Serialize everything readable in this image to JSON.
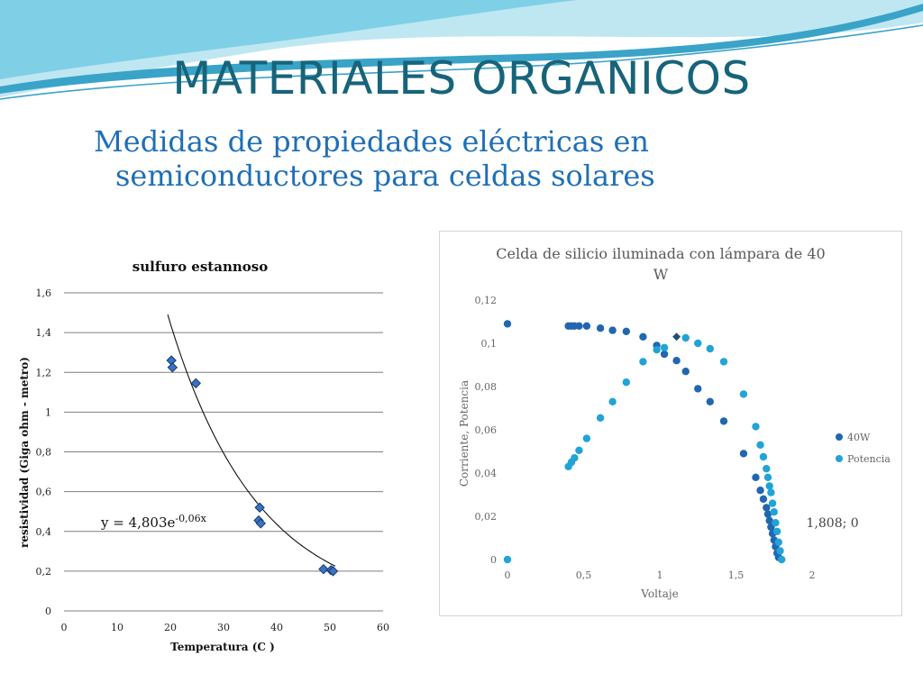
{
  "slide": {
    "title": "MATERIALES ORGANICOS",
    "subtitle_line1": "Medidas de propiedades eléctricas en",
    "subtitle_line2": "semiconductores para celdas solares"
  },
  "colors": {
    "title": "#17647a",
    "subtitle": "#1f6fb5",
    "wave_light": "#bfe7f2",
    "wave_mid": "#7fd0e6",
    "wave_dark": "#3aa3c8",
    "series_dark": "#2166b0",
    "series_light": "#22a3d8"
  },
  "chart_data": [
    {
      "type": "scatter",
      "title": "sulfuro estannoso",
      "xlabel": "Temperatura (C )",
      "ylabel": "resistividad (Giga ohm - metro)",
      "xlim": [
        0,
        60
      ],
      "ylim": [
        0,
        1.6
      ],
      "xticks": [
        0,
        10,
        20,
        30,
        40,
        50,
        60
      ],
      "yticks": [
        0,
        0.2,
        0.4,
        0.6,
        0.8,
        1,
        1.2,
        1.4,
        1.6
      ],
      "xtick_labels": [
        "0",
        "10",
        "20",
        "30",
        "40",
        "50",
        "60"
      ],
      "ytick_labels": [
        "0",
        "0,2",
        "0,4",
        "0,6",
        "0,8",
        "1",
        "1,2",
        "1,4",
        "1,6"
      ],
      "grid": "horizontal",
      "marker": "diamond",
      "series": [
        {
          "name": "sulfuro estannoso",
          "points": [
            [
              20.2,
              1.26
            ],
            [
              20.4,
              1.225
            ],
            [
              24.8,
              1.145
            ],
            [
              36.8,
              0.52
            ],
            [
              36.6,
              0.455
            ],
            [
              37.0,
              0.44
            ],
            [
              48.8,
              0.21
            ],
            [
              50.2,
              0.205
            ],
            [
              50.6,
              0.2
            ]
          ]
        }
      ],
      "trendline": {
        "type": "exponential",
        "a": 4.803,
        "b": -0.06,
        "x_range": [
          19.5,
          51
        ]
      },
      "equation_main": "y = 4,803e",
      "equation_exp": "-0,06x"
    },
    {
      "type": "scatter",
      "title_line1": "Celda de silicio iluminada con lámpara de 40",
      "title_line2": "W",
      "xlabel": "Voltaje",
      "ylabel": "Corriente, Potencia",
      "xlim": [
        0,
        2
      ],
      "ylim": [
        0,
        0.12
      ],
      "xticks": [
        0,
        0.5,
        1,
        1.5,
        2
      ],
      "yticks": [
        0,
        0.02,
        0.04,
        0.06,
        0.08,
        0.1,
        0.12
      ],
      "xtick_labels": [
        "0",
        "0,5",
        "1",
        "1,5",
        "2"
      ],
      "ytick_labels": [
        "0",
        "0,02",
        "0,04",
        "0,06",
        "0,08",
        "0,1",
        "0,12"
      ],
      "legend": "right",
      "annotation": "1,808; 0",
      "annotation_point": [
        1.808,
        0
      ],
      "highlight_point": [
        1.11,
        0.103
      ],
      "series": [
        {
          "name": "40W",
          "color": "#2166b0",
          "points": [
            [
              0.0,
              0.109
            ],
            [
              0.4,
              0.108
            ],
            [
              0.42,
              0.108
            ],
            [
              0.44,
              0.108
            ],
            [
              0.47,
              0.108
            ],
            [
              0.52,
              0.108
            ],
            [
              0.61,
              0.107
            ],
            [
              0.69,
              0.106
            ],
            [
              0.78,
              0.1055
            ],
            [
              0.89,
              0.103
            ],
            [
              0.98,
              0.099
            ],
            [
              1.03,
              0.095
            ],
            [
              1.11,
              0.092
            ],
            [
              1.17,
              0.087
            ],
            [
              1.25,
              0.079
            ],
            [
              1.33,
              0.073
            ],
            [
              1.42,
              0.064
            ],
            [
              1.55,
              0.049
            ],
            [
              1.63,
              0.038
            ],
            [
              1.66,
              0.032
            ],
            [
              1.68,
              0.028
            ],
            [
              1.7,
              0.024
            ],
            [
              1.71,
              0.021
            ],
            [
              1.72,
              0.018
            ],
            [
              1.73,
              0.015
            ],
            [
              1.74,
              0.012
            ],
            [
              1.75,
              0.009
            ],
            [
              1.76,
              0.006
            ],
            [
              1.77,
              0.003
            ],
            [
              1.78,
              0.001
            ]
          ]
        },
        {
          "name": "Potencia",
          "color": "#22a3d8",
          "points": [
            [
              0.0,
              0.0
            ],
            [
              0.4,
              0.043
            ],
            [
              0.42,
              0.045
            ],
            [
              0.44,
              0.047
            ],
            [
              0.47,
              0.0505
            ],
            [
              0.52,
              0.056
            ],
            [
              0.61,
              0.0655
            ],
            [
              0.69,
              0.073
            ],
            [
              0.78,
              0.082
            ],
            [
              0.89,
              0.0915
            ],
            [
              0.98,
              0.097
            ],
            [
              1.03,
              0.098
            ],
            [
              1.17,
              0.1025
            ],
            [
              1.25,
              0.1
            ],
            [
              1.33,
              0.0975
            ],
            [
              1.42,
              0.0915
            ],
            [
              1.55,
              0.0765
            ],
            [
              1.63,
              0.0615
            ],
            [
              1.66,
              0.053
            ],
            [
              1.68,
              0.0475
            ],
            [
              1.7,
              0.042
            ],
            [
              1.71,
              0.038
            ],
            [
              1.72,
              0.034
            ],
            [
              1.73,
              0.031
            ],
            [
              1.74,
              0.026
            ],
            [
              1.75,
              0.022
            ],
            [
              1.76,
              0.017
            ],
            [
              1.77,
              0.013
            ],
            [
              1.78,
              0.008
            ],
            [
              1.79,
              0.004
            ],
            [
              1.8,
              0.0
            ]
          ]
        }
      ]
    }
  ]
}
